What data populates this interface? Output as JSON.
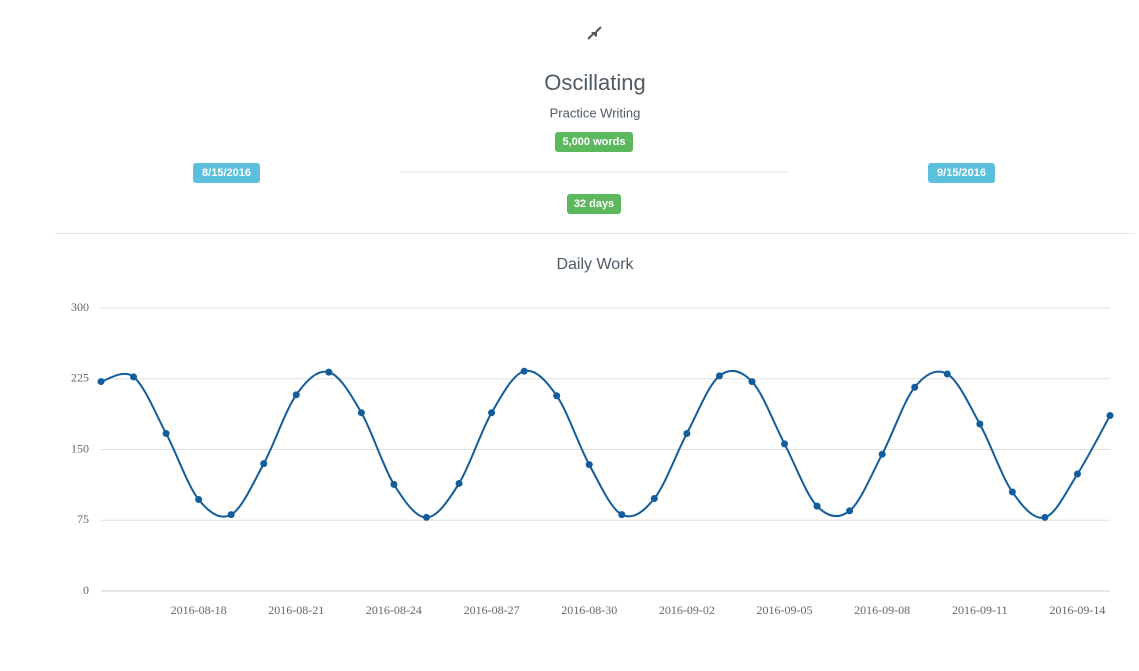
{
  "header": {
    "title": "Oscillating",
    "subtitle": "Practice Writing",
    "goal": "5,000 words",
    "start_date": "8/15/2016",
    "end_date": "9/15/2016",
    "duration": "32 days"
  },
  "chart_data": {
    "type": "line",
    "title": "Daily Work",
    "categories": [
      null,
      null,
      null,
      "2016-08-18",
      null,
      null,
      "2016-08-21",
      null,
      null,
      "2016-08-24",
      null,
      null,
      "2016-08-27",
      null,
      null,
      "2016-08-30",
      null,
      null,
      "2016-09-02",
      null,
      null,
      "2016-09-05",
      null,
      null,
      "2016-09-08",
      null,
      null,
      "2016-09-11",
      null,
      null,
      "2016-09-14",
      null
    ],
    "values": [
      222,
      227,
      167,
      97,
      81,
      135,
      208,
      232,
      189,
      113,
      78,
      114,
      189,
      233,
      207,
      134,
      81,
      98,
      167,
      228,
      222,
      156,
      90,
      85,
      145,
      216,
      230,
      177,
      105,
      78,
      124,
      186
    ],
    "color": "#135d9b",
    "ylim": [
      0,
      300
    ],
    "yticks": [
      0,
      75,
      150,
      225,
      300
    ],
    "grid": true,
    "smooth": true
  }
}
